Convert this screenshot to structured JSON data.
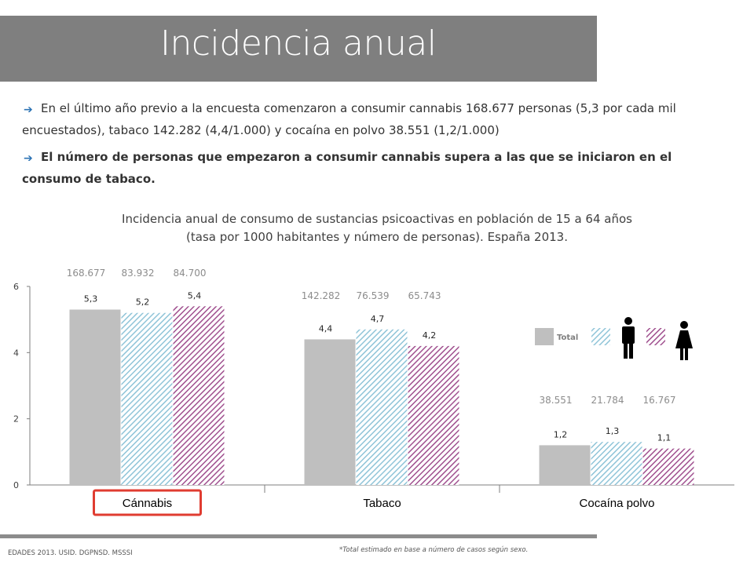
{
  "header": {
    "title": "Incidencia anual"
  },
  "bullets": [
    {
      "icon": "arrow-right-icon",
      "text": "En el último año previo a la encuesta comenzaron a consumir cannabis 168.677 personas (5,3 por cada mil encuestados), tabaco 142.282 (4,4/1.000) y cocaína en polvo 38.551 (1,2/1.000)"
    },
    {
      "icon": "arrow-right-icon",
      "text": "El número de personas que empezaron a consumir cannabis supera a las que se iniciaron en el consumo de tabaco."
    }
  ],
  "chart_data": {
    "type": "bar",
    "title_lines": [
      "Incidencia anual de consumo de sustancias psicoactivas en población de 15 a 64 años",
      "(tasa por 1000 habitantes y número de personas). España 2013."
    ],
    "categories": [
      "Cánnabis",
      "Tabaco",
      "Cocaína polvo"
    ],
    "highlighted_category": "Cánnabis",
    "series": [
      {
        "name": "Total",
        "values": [
          5.3,
          4.4,
          1.2
        ],
        "labels": [
          "5,3",
          "4,4",
          "1,2"
        ],
        "persons": [
          "168.677",
          "142.282",
          "38.551"
        ],
        "color": "#bfbfbf",
        "pattern": "solid"
      },
      {
        "values": [
          5.2,
          4.7,
          1.3
        ],
        "labels": [
          "5,2",
          "4,7",
          "1,3"
        ],
        "persons": [
          "83.932",
          "76.539",
          "21.784"
        ],
        "color": "#8fc4d8",
        "pattern": "hatch",
        "icon": "male-icon"
      },
      {
        "values": [
          5.4,
          4.2,
          1.1
        ],
        "labels": [
          "5,4",
          "4,2",
          "1,1"
        ],
        "persons": [
          "84.700",
          "65.743",
          "16.767"
        ],
        "color": "#a0508f",
        "pattern": "hatch",
        "icon": "female-icon"
      }
    ],
    "yticks": [
      "0",
      "2",
      "4",
      "6"
    ],
    "ylim": [
      0,
      6
    ],
    "grid": false,
    "legend_position": "right"
  },
  "footer": {
    "source": "EDADES 2013. USID. DGPNSD. MSSSI",
    "note": "*Total estimado en base a número de casos según sexo."
  },
  "colors": {
    "title_bar": "#7f7f7f",
    "highlight_box": "#e03c31",
    "bullet_icon": "#2e74b5"
  }
}
